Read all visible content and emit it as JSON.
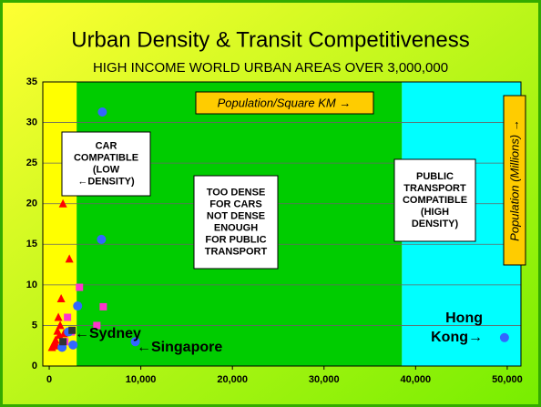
{
  "chart_data": {
    "type": "scatter",
    "title": "Urban Density & Transit Competitiveness",
    "subtitle": "HIGH INCOME WORLD URBAN AREAS OVER 3,000,000",
    "x_label": "Population/Square KM →",
    "y_label": "Population (Millions) →",
    "xlim": [
      -700,
      51500
    ],
    "ylim": [
      0,
      35
    ],
    "xticks": [
      0,
      {
        "value": 10000,
        "label": "10,000"
      },
      {
        "value": 20000,
        "label": "20,000"
      },
      {
        "value": 30000,
        "label": "30,000"
      },
      {
        "value": 40000,
        "label": "40,000"
      },
      {
        "value": 50000,
        "label": "50,000"
      }
    ],
    "yticks": [
      0,
      5,
      10,
      15,
      20,
      25,
      30,
      35
    ],
    "grid": true,
    "bands": [
      {
        "from": -700,
        "to": 3000,
        "color": "#ffff00"
      },
      {
        "from": 3000,
        "to": 38500,
        "color": "#00cc00"
      },
      {
        "from": 38500,
        "to": 51500,
        "color": "#00ffff"
      }
    ],
    "zone_labels": [
      {
        "lines": [
          "CAR",
          "COMPATIBLE",
          "(LOW",
          "←DENSITY)"
        ]
      },
      {
        "lines": [
          "TOO DENSE",
          "FOR CARS",
          "NOT DENSE",
          "ENOUGH",
          "FOR PUBLIC",
          "TRANSPORT"
        ]
      },
      {
        "lines": [
          "PUBLIC",
          "TRANSPORT",
          "COMPATIBLE",
          "(HIGH",
          "DENSITY)"
        ]
      }
    ],
    "annotations": [
      {
        "lines": [
          "←Sydney"
        ]
      },
      {
        "lines": [
          "←Singapore"
        ]
      },
      {
        "lines": [
          "Hong",
          "Kong→"
        ]
      }
    ],
    "series": [
      {
        "color": "#ff0000",
        "marker": "triangle",
        "x": [
          1500,
          2200,
          1300,
          1000,
          1200,
          900,
          700,
          500,
          300,
          800,
          1100,
          1600
        ],
        "values": [
          20,
          13.2,
          8.3,
          6.0,
          5.0,
          4.3,
          3.2,
          2.7,
          2.3,
          2.5,
          3.8,
          4.0
        ]
      },
      {
        "color": "#ff33cc",
        "marker": "square",
        "x": [
          3300,
          5900,
          5200,
          2000,
          2400,
          1700
        ],
        "values": [
          9.7,
          7.3,
          5.0,
          6.0,
          4.2,
          3.0
        ]
      },
      {
        "color": "#3366ff",
        "marker": "circle",
        "x": [
          5800,
          5700,
          3100,
          9400,
          49700,
          2600,
          1400,
          2100
        ],
        "values": [
          31.3,
          15.6,
          7.4,
          3.0,
          3.5,
          2.6,
          2.3,
          4.2
        ]
      },
      {
        "color": "#333333",
        "marker": "square",
        "x": [
          2500,
          1500
        ],
        "values": [
          4.4,
          3.0
        ]
      }
    ]
  }
}
